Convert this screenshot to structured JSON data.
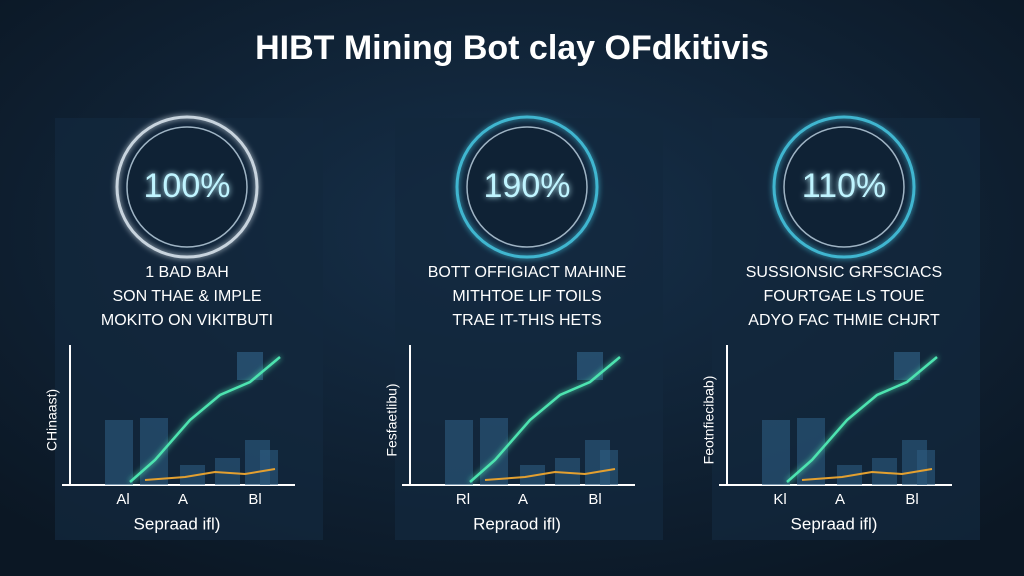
{
  "title": "HIBT Mining Bot clay OFdkitivis",
  "panels": [
    {
      "ring": "100%",
      "lines": [
        "1 BAD BAH",
        "SON THAE & IMPLE",
        "MOKITO ON VIKITBUTI"
      ],
      "y_label": "CHinaast)",
      "x_labels": [
        "Al",
        "A",
        "Bl"
      ],
      "x_label": "Sepraad ifl)"
    },
    {
      "ring": "190%",
      "lines": [
        "BOTT OFFIGIACT MAHINE",
        "MITHTOE LIF TOILS",
        "TRAE IT-THIS HETS"
      ],
      "y_label": "Fesfaetlibu)",
      "x_labels": [
        "Rl",
        "A",
        "Bl"
      ],
      "x_label": "Repraod ifl)"
    },
    {
      "ring": "110%",
      "lines": [
        "SUSSIONSIC GRFSCIACS",
        "FOURTGAE LS TOUE",
        "ADYO FAC THMIE CHJRT"
      ],
      "y_label": "Feotnfiecibab)",
      "x_labels": [
        "Kl",
        "A",
        "Bl"
      ],
      "x_label": "Sepraad ifl)"
    }
  ]
}
